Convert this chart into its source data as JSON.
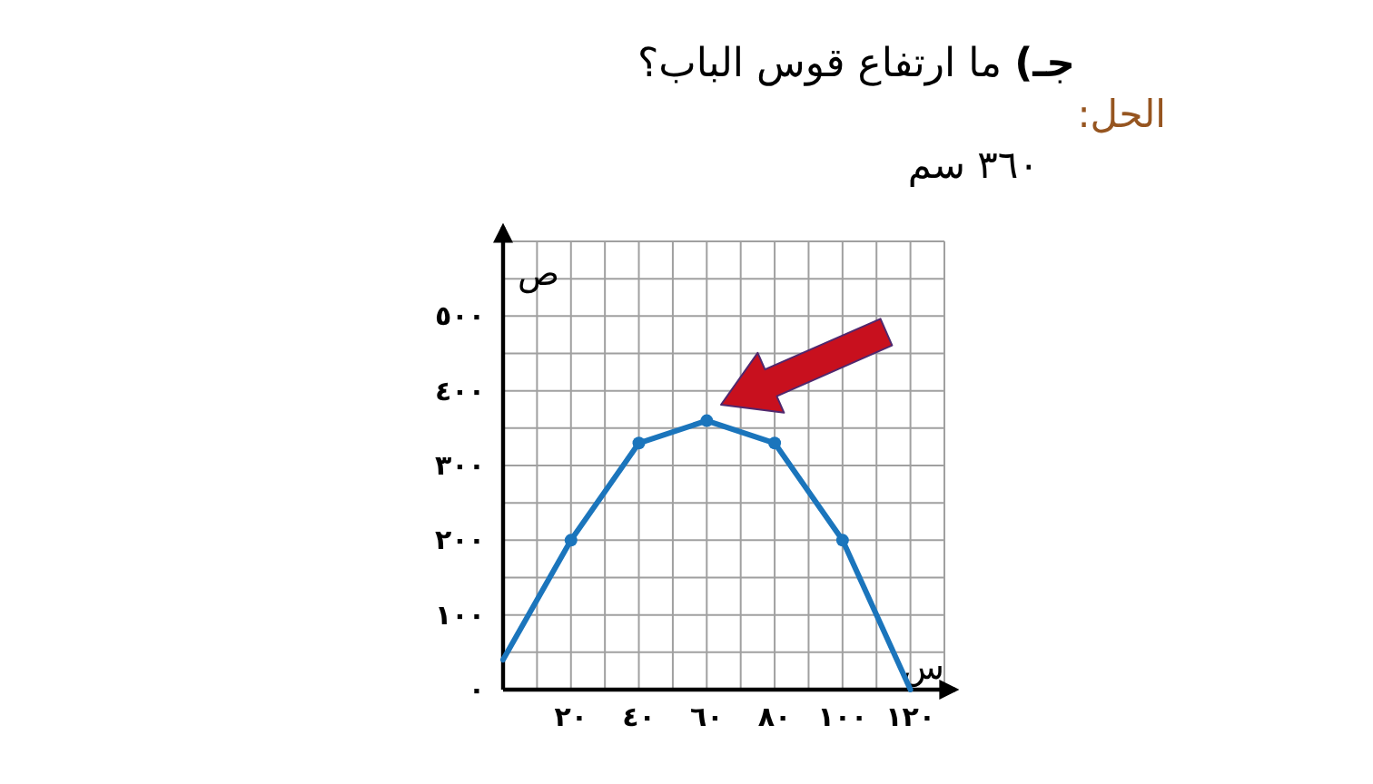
{
  "chart_data": {
    "type": "line",
    "title": "**جـ)** ما ارتفاع قوس الباب؟",
    "annotations": [
      "الحل:",
      "٣٦٠ سم"
    ],
    "xlabel": "س",
    "ylabel": "ص",
    "xlim": [
      0,
      130
    ],
    "ylim": [
      0,
      600
    ],
    "xticks": [
      {
        "value": 0,
        "label": null
      },
      {
        "value": 10,
        "label": null
      },
      {
        "value": 20,
        "label": "٢٠"
      },
      {
        "value": 30,
        "label": null
      },
      {
        "value": 40,
        "label": "٤٠"
      },
      {
        "value": 50,
        "label": null
      },
      {
        "value": 60,
        "label": "٦٠"
      },
      {
        "value": 70,
        "label": null
      },
      {
        "value": 80,
        "label": "٨٠"
      },
      {
        "value": 90,
        "label": null
      },
      {
        "value": 100,
        "label": "١٠٠"
      },
      {
        "value": 110,
        "label": null
      },
      {
        "value": 120,
        "label": "١٢٠"
      },
      {
        "value": 130,
        "label": null
      }
    ],
    "yticks": [
      {
        "value": 0,
        "label": "٠"
      },
      {
        "value": 50,
        "label": null
      },
      {
        "value": 100,
        "label": "١٠٠"
      },
      {
        "value": 150,
        "label": null
      },
      {
        "value": 200,
        "label": "٢٠٠"
      },
      {
        "value": 250,
        "label": null
      },
      {
        "value": 300,
        "label": "٣٠٠"
      },
      {
        "value": 350,
        "label": null
      },
      {
        "value": 400,
        "label": "٤٠٠"
      },
      {
        "value": 450,
        "label": null
      },
      {
        "value": 500,
        "label": "٥٠٠"
      },
      {
        "value": 550,
        "label": null
      },
      {
        "value": 600,
        "label": null
      }
    ],
    "grid": true,
    "series": [
      {
        "type": "line",
        "color": "#1b75bc",
        "marker": "none",
        "x": [
          0,
          20,
          40,
          60,
          80,
          100,
          120
        ],
        "values": [
          40,
          200,
          330,
          360,
          330,
          200,
          0
        ]
      },
      {
        "type": "scatter",
        "color": "#1b75bc",
        "marker": "circle",
        "x": [
          20,
          40,
          60,
          80,
          100
        ],
        "values": [
          200,
          330,
          360,
          330,
          200
        ]
      }
    ]
  }
}
